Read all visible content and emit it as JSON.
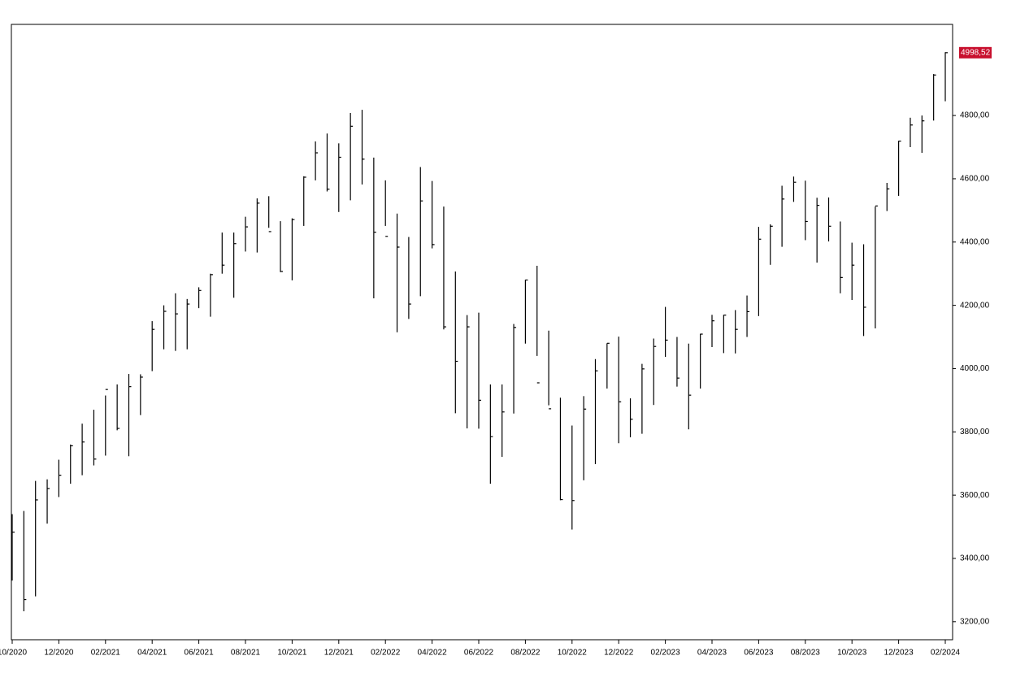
{
  "chart_data": {
    "type": "hlc",
    "categories": [
      "10/2020",
      null,
      null,
      null,
      "12/2020",
      null,
      null,
      null,
      "02/2021",
      null,
      null,
      null,
      "04/2021",
      null,
      null,
      null,
      "06/2021",
      null,
      null,
      null,
      "08/2021",
      null,
      null,
      null,
      "10/2021",
      null,
      null,
      null,
      "12/2021",
      null,
      null,
      null,
      "02/2022",
      null,
      null,
      null,
      "04/2022",
      null,
      null,
      null,
      "06/2022",
      null,
      null,
      null,
      "08/2022",
      null,
      null,
      null,
      "10/2022",
      null,
      null,
      null,
      "12/2022",
      null,
      null,
      null,
      "02/2023",
      null,
      null,
      null,
      "04/2023",
      null,
      null,
      null,
      "06/2023",
      null,
      null,
      null,
      "08/2023",
      null,
      null,
      null,
      "10/2023",
      null,
      null,
      null,
      "12/2023",
      null,
      null,
      null,
      "02/2024"
    ],
    "series": [
      {
        "color": "#000000",
        "high": [
          3540,
          3550,
          3645,
          3650,
          3712,
          3760,
          3826,
          3870,
          3915,
          3950,
          3983,
          3982,
          4150,
          4200,
          4238,
          4220,
          4257,
          4300,
          4430,
          4430,
          4480,
          4538,
          4545,
          4466,
          4475,
          4608,
          4718,
          4743,
          4712,
          4808,
          4818,
          4667,
          4595,
          4490,
          4416,
          4637,
          4593,
          4512,
          4307,
          4169,
          4177,
          3950,
          3950,
          4141,
          4281,
          4325,
          4120,
          3908,
          3820,
          3913,
          4030,
          4080,
          4101,
          3906,
          4015,
          4095,
          4195,
          4100,
          4079,
          4110,
          4170,
          4170,
          4185,
          4231,
          4448,
          4456,
          4578,
          4607,
          4594,
          4540,
          4541,
          4465,
          4398,
          4393,
          4512,
          4587,
          4720,
          4793,
          4800,
          4931,
          5000
        ],
        "low": [
          3330,
          3233,
          3280,
          3510,
          3594,
          3636,
          3663,
          3694,
          3725,
          3805,
          3723,
          3853,
          3992,
          4061,
          4056,
          4061,
          4191,
          4164,
          4300,
          4224,
          4370,
          4367,
          4445,
          4305,
          4279,
          4451,
          4595,
          4560,
          4495,
          4532,
          4582,
          4222,
          4451,
          4115,
          4157,
          4229,
          4380,
          4124,
          3859,
          3811,
          3810,
          3636,
          3721,
          3858,
          4079,
          4040,
          3884,
          3584,
          3491,
          3647,
          3698,
          3937,
          3764,
          3783,
          3794,
          3885,
          4037,
          3943,
          3808,
          3937,
          4068,
          4049,
          4048,
          4100,
          4166,
          4328,
          4385,
          4527,
          4406,
          4335,
          4402,
          4238,
          4217,
          4103,
          4127,
          4498,
          4546,
          4700,
          4682,
          4784,
          4845
        ],
        "close": [
          3483,
          3270,
          3585,
          3621,
          3663,
          3756,
          3768,
          3714,
          3934,
          3811,
          3943,
          3973,
          4124,
          4181,
          4173,
          4204,
          4247,
          4297,
          4327,
          4395,
          4448,
          4523,
          4433,
          4307,
          4471,
          4605,
          4682,
          4567,
          4668,
          4766,
          4662,
          4431,
          4418,
          4384,
          4204,
          4530,
          4392,
          4132,
          4023,
          4132,
          3900,
          3785,
          3863,
          4130,
          4280,
          3955,
          3873,
          3586,
          3583,
          3872,
          3993,
          4080,
          3895,
          3840,
          3999,
          4070,
          4090,
          3970,
          3916,
          4109,
          4151,
          4169,
          4124,
          4180,
          4409,
          4450,
          4536,
          4589,
          4465,
          4516,
          4450,
          4288,
          4327,
          4194,
          4514,
          4568,
          4719,
          4770,
          4783,
          4928,
          4998.52
        ]
      }
    ],
    "last_label": "4998,52",
    "ylim": [
      3143,
      5088
    ],
    "yticks": [
      {
        "value": 3200,
        "label": "3200,00"
      },
      {
        "value": 3400,
        "label": "3400,00"
      },
      {
        "value": 3600,
        "label": "3600,00"
      },
      {
        "value": 3800,
        "label": "3800,00"
      },
      {
        "value": 4000,
        "label": "4000,00"
      },
      {
        "value": 4200,
        "label": "4200,00"
      },
      {
        "value": 4400,
        "label": "4400,00"
      },
      {
        "value": 4600,
        "label": "4600,00"
      },
      {
        "value": 4800,
        "label": "4800,00"
      }
    ],
    "last_label_color": "#c8102e"
  }
}
